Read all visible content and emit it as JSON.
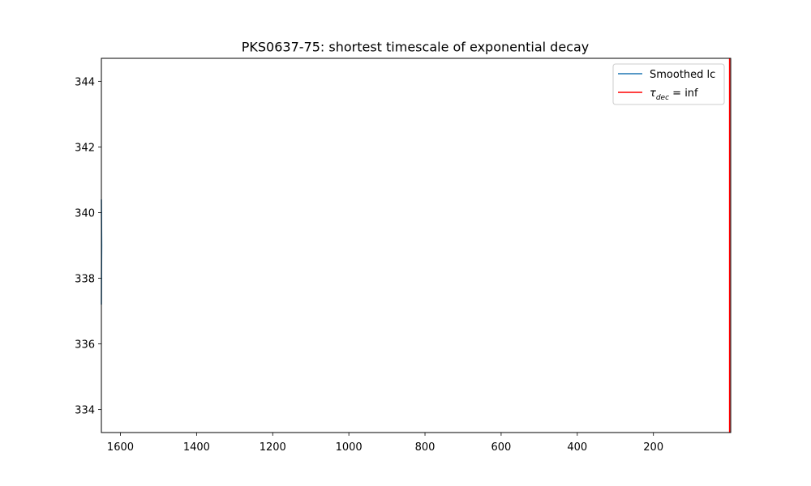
{
  "chart_data": {
    "type": "line",
    "title": "PKS0637-75: shortest timescale of exponential decay",
    "xlabel": "",
    "ylabel": "",
    "xlim": [
      1650,
      -3
    ],
    "ylim": [
      333.3,
      344.7
    ],
    "x_ticks": [
      1600,
      1400,
      1200,
      1000,
      800,
      600,
      400,
      200
    ],
    "y_ticks": [
      334,
      336,
      338,
      340,
      342,
      344
    ],
    "grid": false,
    "legend": {
      "placement": "top-right",
      "entries": [
        {
          "name": "Smoothed lc",
          "color": "#1f77b4"
        },
        {
          "name_prefix": "τ",
          "name_sub": "dec",
          "name_suffix": " = inf",
          "color": "#ff0000"
        }
      ]
    },
    "series": [
      {
        "name": "Smoothed lc",
        "color": "#1f77b4",
        "points": [
          [
            1650,
            337.2
          ],
          [
            1649.6,
            338.2
          ],
          [
            1649.2,
            339.0
          ],
          [
            1649.6,
            339.8
          ],
          [
            1650,
            340.4
          ]
        ]
      }
    ],
    "vlines": [
      {
        "name": "τdec = inf",
        "x": 0,
        "color": "#ff0000"
      }
    ]
  }
}
